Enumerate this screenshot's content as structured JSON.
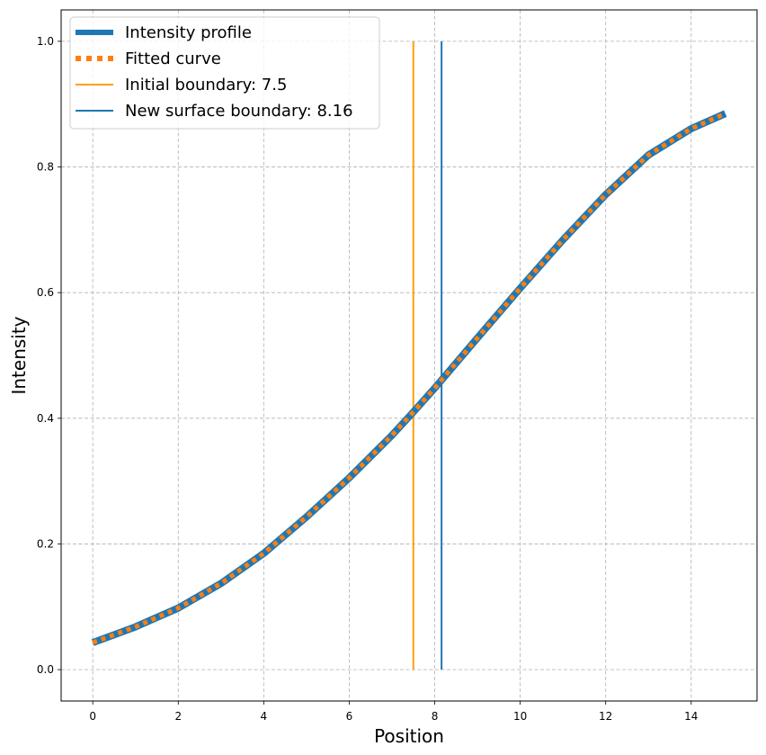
{
  "chart_data": {
    "type": "line",
    "title": "",
    "xlabel": "Position",
    "ylabel": "Intensity",
    "xlim": [
      -0.74,
      15.54
    ],
    "ylim": [
      -0.05,
      1.05
    ],
    "xticks": [
      0,
      2,
      4,
      6,
      8,
      10,
      12,
      14
    ],
    "yticks": [
      0.0,
      0.2,
      0.4,
      0.6,
      0.8,
      1.0
    ],
    "xtick_labels": [
      "0",
      "2",
      "4",
      "6",
      "8",
      "10",
      "12",
      "14"
    ],
    "ytick_labels": [
      "0.0",
      "0.2",
      "0.4",
      "0.6",
      "0.8",
      "1.0"
    ],
    "grid": true,
    "legend_position": "top-left",
    "series": [
      {
        "name": "Intensity profile",
        "kind": "line",
        "color": "#1f77b4",
        "x": [
          0,
          1,
          2,
          3,
          4,
          5,
          6,
          7,
          7.5,
          8,
          9,
          10,
          11,
          12,
          13,
          14,
          14.8
        ],
        "y": [
          0.043,
          0.068,
          0.098,
          0.137,
          0.185,
          0.243,
          0.305,
          0.373,
          0.41,
          0.448,
          0.528,
          0.607,
          0.684,
          0.756,
          0.819,
          0.861,
          0.885
        ]
      },
      {
        "name": "Fitted curve",
        "kind": "dotted",
        "color": "#ff7f0e",
        "x": [
          0,
          1,
          2,
          3,
          4,
          5,
          6,
          7,
          7.5,
          8,
          9,
          10,
          11,
          12,
          13,
          14,
          14.8
        ],
        "y": [
          0.043,
          0.068,
          0.098,
          0.137,
          0.185,
          0.243,
          0.305,
          0.373,
          0.41,
          0.448,
          0.528,
          0.607,
          0.684,
          0.756,
          0.819,
          0.861,
          0.885
        ]
      },
      {
        "name": "Initial boundary: 7.5",
        "kind": "vline",
        "color": "#ff9f0f",
        "x": 7.5,
        "y": [
          0,
          1
        ]
      },
      {
        "name": "New surface boundary: 8.16",
        "kind": "vline",
        "color": "#1f77b4",
        "x": 8.16,
        "y": [
          0,
          1
        ]
      }
    ]
  }
}
